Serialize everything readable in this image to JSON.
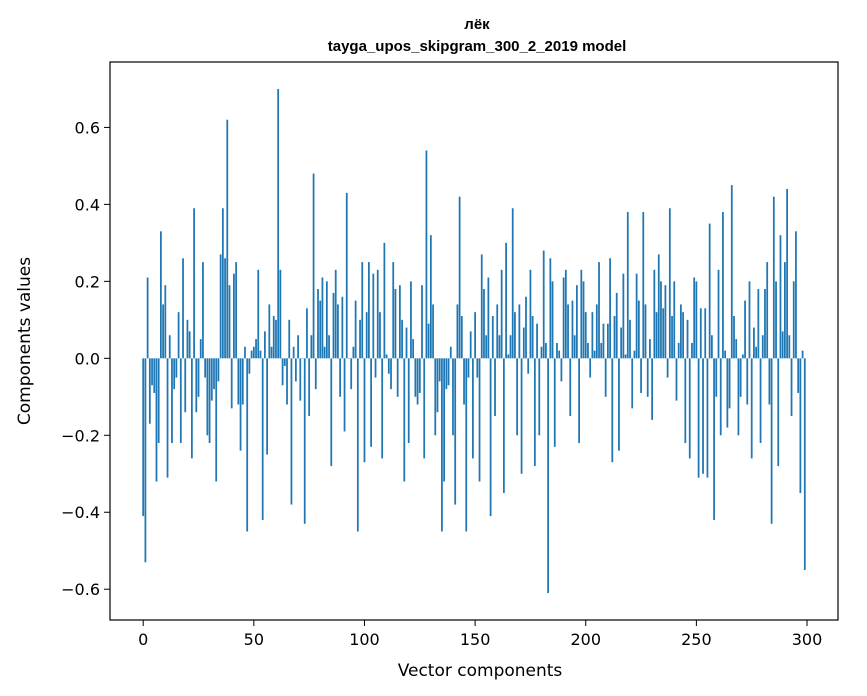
{
  "chart_data": {
    "type": "bar",
    "title": "лёк",
    "subtitle": "tayga_upos_skipgram_300_2_2019 model",
    "xlabel": "Vector components",
    "ylabel": "Components values",
    "xlim": [
      -15,
      314
    ],
    "ylim": [
      -0.68,
      0.77
    ],
    "xticks": [
      0,
      50,
      100,
      150,
      200,
      250,
      300
    ],
    "yticks": [
      -0.6,
      -0.4,
      -0.2,
      0.0,
      0.2,
      0.4,
      0.6
    ],
    "xtick_labels": [
      "0",
      "50",
      "100",
      "150",
      "200",
      "250",
      "300"
    ],
    "ytick_labels": [
      "−0.6",
      "−0.4",
      "−0.2",
      "0.0",
      "0.2",
      "0.4",
      "0.6"
    ],
    "grid": false,
    "bar_color": "#1f77b4",
    "values": [
      -0.41,
      -0.53,
      0.21,
      -0.17,
      -0.07,
      -0.09,
      -0.32,
      -0.22,
      0.33,
      0.14,
      0.19,
      -0.31,
      0.06,
      -0.22,
      -0.08,
      -0.05,
      0.12,
      -0.22,
      0.26,
      -0.14,
      0.1,
      0.07,
      -0.26,
      0.39,
      -0.14,
      -0.1,
      0.05,
      0.25,
      -0.05,
      -0.2,
      -0.22,
      -0.11,
      -0.08,
      -0.32,
      -0.06,
      0.27,
      0.39,
      0.26,
      0.62,
      0.19,
      -0.13,
      0.22,
      0.25,
      -0.12,
      -0.24,
      -0.12,
      0.03,
      -0.45,
      -0.04,
      0.02,
      0.03,
      0.05,
      0.23,
      0.02,
      -0.42,
      0.07,
      -0.25,
      0.14,
      0.03,
      0.11,
      0.1,
      0.7,
      0.23,
      -0.07,
      -0.02,
      -0.12,
      0.1,
      -0.38,
      0.03,
      -0.06,
      0.06,
      -0.11,
      0.0,
      -0.43,
      0.13,
      -0.15,
      0.06,
      0.48,
      -0.08,
      0.18,
      0.15,
      0.21,
      0.03,
      0.2,
      0.06,
      -0.28,
      0.17,
      0.23,
      0.14,
      -0.1,
      0.16,
      -0.19,
      0.43,
      0.0,
      -0.08,
      0.03,
      0.15,
      -0.45,
      0.1,
      0.25,
      -0.27,
      0.12,
      0.25,
      -0.23,
      0.22,
      -0.05,
      0.23,
      0.12,
      -0.26,
      0.3,
      0.01,
      -0.04,
      -0.08,
      0.25,
      0.18,
      -0.1,
      0.19,
      0.1,
      -0.32,
      0.08,
      -0.22,
      0.2,
      0.05,
      -0.1,
      -0.12,
      -0.09,
      0.19,
      -0.26,
      0.54,
      0.09,
      0.32,
      0.14,
      -0.2,
      -0.14,
      -0.06,
      -0.45,
      -0.32,
      -0.08,
      -0.07,
      0.03,
      -0.2,
      -0.38,
      0.14,
      0.42,
      0.11,
      -0.12,
      -0.45,
      -0.05,
      0.07,
      -0.26,
      0.12,
      -0.05,
      -0.32,
      0.27,
      0.18,
      0.06,
      0.21,
      -0.41,
      0.11,
      -0.15,
      0.14,
      0.06,
      0.23,
      -0.35,
      0.3,
      0.01,
      0.06,
      0.39,
      0.12,
      -0.2,
      0.14,
      -0.3,
      0.08,
      0.16,
      -0.04,
      0.23,
      0.11,
      -0.28,
      0.09,
      -0.2,
      0.03,
      0.28,
      0.04,
      -0.61,
      0.26,
      0.2,
      -0.23,
      0.04,
      0.02,
      -0.06,
      0.21,
      0.23,
      0.14,
      -0.15,
      0.15,
      0.06,
      0.19,
      -0.22,
      0.23,
      0.2,
      0.12,
      0.04,
      -0.05,
      0.12,
      0.02,
      0.14,
      0.25,
      0.04,
      0.09,
      -0.1,
      0.09,
      0.26,
      -0.27,
      0.11,
      0.17,
      -0.24,
      0.08,
      0.22,
      0.01,
      0.38,
      0.1,
      -0.13,
      0.02,
      0.22,
      0.15,
      -0.09,
      0.38,
      0.14,
      -0.1,
      0.05,
      -0.16,
      0.23,
      0.12,
      0.27,
      0.2,
      0.13,
      0.19,
      -0.05,
      0.39,
      0.11,
      0.2,
      -0.11,
      0.04,
      0.14,
      0.12,
      -0.22,
      0.1,
      -0.26,
      0.04,
      0.21,
      0.2,
      -0.31,
      0.13,
      -0.3,
      0.13,
      -0.31,
      0.35,
      0.06,
      -0.42,
      -0.1,
      0.23,
      -0.2,
      0.38,
      0.02,
      -0.18,
      -0.13,
      0.45,
      0.11,
      0.05,
      -0.2,
      -0.1,
      0.01,
      0.15,
      -0.12,
      0.2,
      -0.26,
      0.08,
      0.03,
      0.18,
      -0.22,
      0.06,
      0.18,
      0.25,
      -0.12,
      -0.43,
      0.42,
      0.2,
      -0.28,
      0.32,
      0.07,
      0.25,
      0.44,
      0.06,
      -0.15,
      0.2,
      0.33,
      -0.09,
      -0.35,
      0.02,
      -0.55
    ]
  }
}
